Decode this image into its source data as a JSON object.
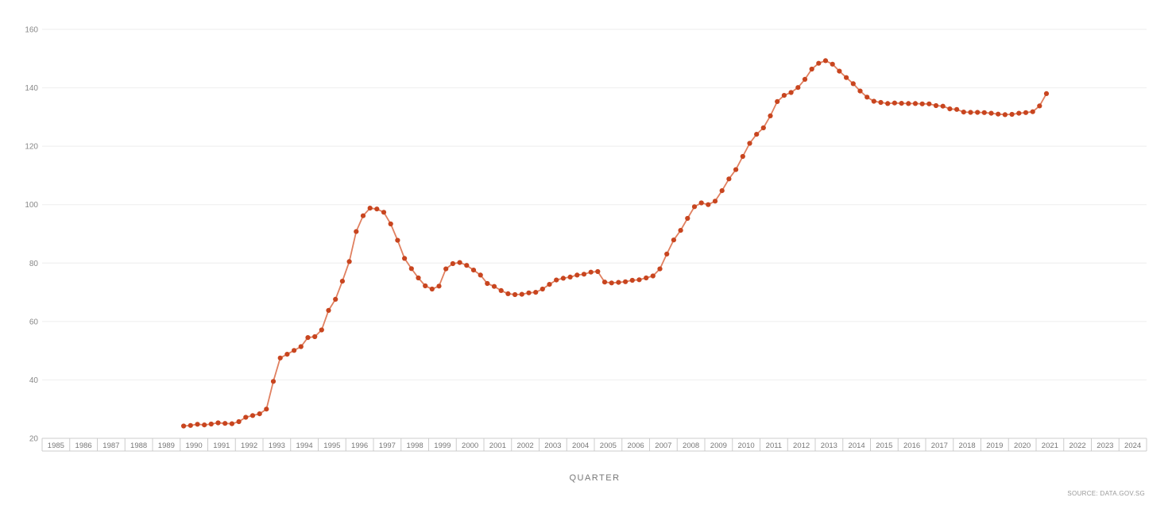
{
  "chart_data": {
    "type": "line",
    "title": "",
    "xlabel": "QUARTER",
    "ylabel": "",
    "source": "SOURCE: DATA.GOV.SG",
    "ylim": [
      20,
      160
    ],
    "yticks": [
      20,
      40,
      60,
      80,
      100,
      120,
      140,
      160
    ],
    "xlim_years": [
      1985,
      2025
    ],
    "xticks": [
      "1985",
      "1986",
      "1987",
      "1988",
      "1989",
      "1990",
      "1991",
      "1992",
      "1993",
      "1994",
      "1995",
      "1996",
      "1997",
      "1998",
      "1999",
      "2000",
      "2001",
      "2002",
      "2003",
      "2004",
      "2005",
      "2006",
      "2007",
      "2008",
      "2009",
      "2010",
      "2011",
      "2012",
      "2013",
      "2014",
      "2015",
      "2016",
      "2017",
      "2018",
      "2019",
      "2020",
      "2021",
      "2022",
      "2023",
      "2024"
    ],
    "grid": true,
    "colors": {
      "line": "#e08060",
      "marker": "#c8451f",
      "grid": "#eeeeee",
      "axis": "#cccccc"
    },
    "series": [
      {
        "start_quarter": "1990-Q1",
        "values": [
          24.2,
          24.4,
          24.8,
          24.6,
          24.9,
          25.3,
          25.1,
          25.0,
          25.7,
          27.2,
          27.8,
          28.4,
          30.0,
          39.5,
          47.5,
          48.8,
          50.1,
          51.4,
          54.5,
          54.8,
          57.1,
          63.8,
          67.6,
          73.8,
          80.5,
          90.8,
          96.2,
          98.8,
          98.5,
          97.4,
          93.4,
          87.8,
          81.6,
          78.1,
          74.9,
          72.2,
          71.1,
          72.1,
          78.0,
          79.8,
          80.2,
          79.2,
          77.6,
          75.9,
          73.0,
          72.0,
          70.6,
          69.5,
          69.2,
          69.3,
          69.8,
          70.0,
          71.1,
          72.7,
          74.2,
          74.8,
          75.2,
          75.9,
          76.2,
          76.9,
          77.1,
          73.5,
          73.2,
          73.4,
          73.6,
          74.1,
          74.3,
          74.9,
          75.6,
          78.0,
          83.1,
          87.9,
          91.2,
          95.3,
          99.3,
          100.6,
          100.0,
          101.2,
          104.8,
          108.8,
          112.0,
          116.5,
          121.0,
          124.1,
          126.3,
          130.4,
          135.3,
          137.4,
          138.4,
          140.1,
          142.9,
          146.4,
          148.4,
          149.3,
          148.1,
          145.7,
          143.5,
          141.4,
          138.9,
          136.8,
          135.4,
          135.0,
          134.6,
          134.8,
          134.7,
          134.6,
          134.6,
          134.5,
          134.5,
          133.9,
          133.7,
          132.8,
          132.6,
          131.7,
          131.6,
          131.6,
          131.5,
          131.3,
          131.0,
          130.8,
          130.9,
          131.3,
          131.5,
          131.8,
          133.8,
          138.0
        ]
      }
    ]
  }
}
